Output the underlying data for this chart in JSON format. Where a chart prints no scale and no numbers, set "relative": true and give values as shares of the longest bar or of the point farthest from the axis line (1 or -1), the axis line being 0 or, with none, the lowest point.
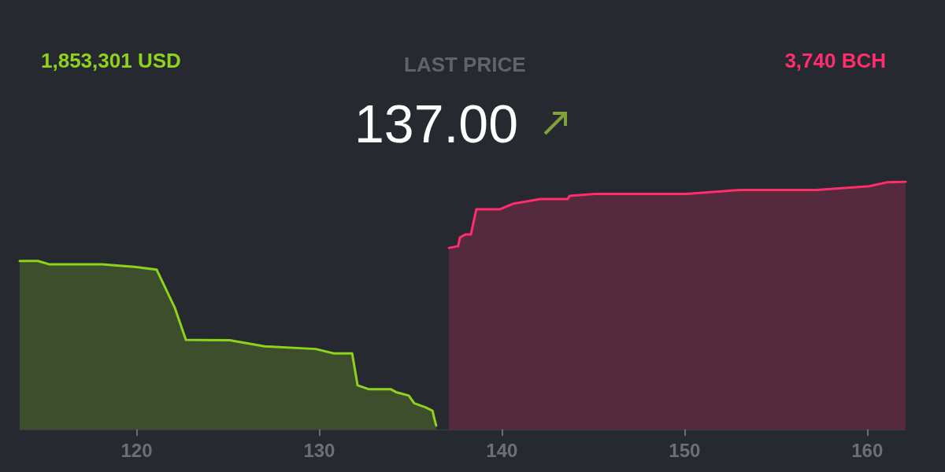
{
  "chart_data": {
    "type": "area",
    "title": "LAST PRICE",
    "subtitle": "137.00",
    "relative": true,
    "marker": "none",
    "grid": false,
    "annotations": [
      "1,853,301 USD",
      "3,740 BCH"
    ],
    "xlim": [
      113.6,
      162.1
    ],
    "xticks": [
      120,
      130,
      140,
      150,
      160
    ],
    "series": [
      {
        "color": "#8fd21b",
        "x": [
          113.6,
          114.6,
          115.2,
          118.1,
          119.9,
          121.1,
          122.1,
          122.7,
          125.1,
          127.0,
          129.8,
          130.8,
          131.8,
          132.1,
          132.7,
          133.9,
          134.2,
          134.9,
          135.2,
          135.8,
          136.2,
          136.3,
          136.4
        ],
        "values": [
          0.68,
          0.68,
          0.667,
          0.667,
          0.656,
          0.645,
          0.49,
          0.362,
          0.36,
          0.336,
          0.325,
          0.307,
          0.307,
          0.178,
          0.163,
          0.163,
          0.151,
          0.137,
          0.106,
          0.09,
          0.076,
          0.044,
          0.016
        ]
      },
      {
        "color": "#ff2d6b",
        "x": [
          137.1,
          137.6,
          137.7,
          138.0,
          138.3,
          138.6,
          139.9,
          140.6,
          142.1,
          143.6,
          143.7,
          145.1,
          150.1,
          153.0,
          157.2,
          160.1,
          161.1,
          162.1
        ],
        "values": [
          0.733,
          0.74,
          0.775,
          0.787,
          0.787,
          0.889,
          0.889,
          0.911,
          0.93,
          0.93,
          0.943,
          0.951,
          0.951,
          0.967,
          0.967,
          0.982,
          0.998,
          1.0
        ]
      }
    ]
  }
}
